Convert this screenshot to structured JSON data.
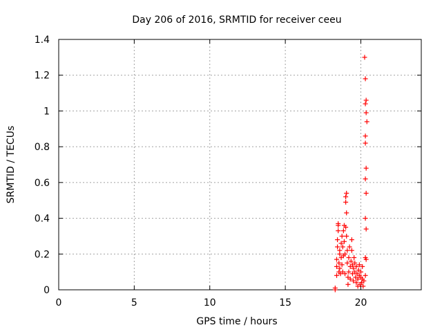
{
  "chart_data": {
    "type": "scatter",
    "title": "Day 206 of 2016, SRMTID for receiver ceeu",
    "xlabel": "GPS time / hours",
    "ylabel": "SRMTID / TECUs",
    "xlim": [
      0,
      24
    ],
    "ylim": [
      0,
      1.4
    ],
    "xticks": [
      "0",
      "5",
      "10",
      "15",
      "20"
    ],
    "yticks": [
      "0",
      "0.2",
      "0.4",
      "0.6",
      "0.8",
      "1",
      "1.2",
      "1.4"
    ],
    "grid": true,
    "marker_color": "#ff0000",
    "series": [
      {
        "marker": "cross",
        "points": [
          [
            18.3,
            0.0
          ],
          [
            18.3,
            0.01
          ],
          [
            18.4,
            0.08
          ],
          [
            18.4,
            0.13
          ],
          [
            18.4,
            0.17
          ],
          [
            18.45,
            0.24
          ],
          [
            18.45,
            0.28
          ],
          [
            18.5,
            0.33
          ],
          [
            18.5,
            0.36
          ],
          [
            18.5,
            0.37
          ],
          [
            18.55,
            0.1
          ],
          [
            18.55,
            0.15
          ],
          [
            18.6,
            0.22
          ],
          [
            18.6,
            0.2
          ],
          [
            18.6,
            0.12
          ],
          [
            18.65,
            0.09
          ],
          [
            18.7,
            0.18
          ],
          [
            18.7,
            0.26
          ],
          [
            18.75,
            0.3
          ],
          [
            18.75,
            0.14
          ],
          [
            18.8,
            0.24
          ],
          [
            18.8,
            0.1
          ],
          [
            18.85,
            0.19
          ],
          [
            18.85,
            0.33
          ],
          [
            18.9,
            0.36
          ],
          [
            18.9,
            0.27
          ],
          [
            18.95,
            0.2
          ],
          [
            18.95,
            0.09
          ],
          [
            19.0,
            0.49
          ],
          [
            19.0,
            0.52
          ],
          [
            19.05,
            0.54
          ],
          [
            19.05,
            0.43
          ],
          [
            19.0,
            0.35
          ],
          [
            19.05,
            0.3
          ],
          [
            19.1,
            0.22
          ],
          [
            19.1,
            0.15
          ],
          [
            19.15,
            0.07
          ],
          [
            19.15,
            0.03
          ],
          [
            19.2,
            0.1
          ],
          [
            19.2,
            0.18
          ],
          [
            19.25,
            0.24
          ],
          [
            19.3,
            0.13
          ],
          [
            19.3,
            0.06
          ],
          [
            19.35,
            0.16
          ],
          [
            19.4,
            0.28
          ],
          [
            19.4,
            0.22
          ],
          [
            19.45,
            0.14
          ],
          [
            19.45,
            0.09
          ],
          [
            19.5,
            0.05
          ],
          [
            19.5,
            0.12
          ],
          [
            19.55,
            0.18
          ],
          [
            19.6,
            0.1
          ],
          [
            19.6,
            0.15
          ],
          [
            19.65,
            0.07
          ],
          [
            19.7,
            0.13
          ],
          [
            19.7,
            0.04
          ],
          [
            19.75,
            0.09
          ],
          [
            19.8,
            0.02
          ],
          [
            19.8,
            0.06
          ],
          [
            19.85,
            0.11
          ],
          [
            19.9,
            0.08
          ],
          [
            19.9,
            0.14
          ],
          [
            19.95,
            0.03
          ],
          [
            20.0,
            0.07
          ],
          [
            20.0,
            0.1
          ],
          [
            20.05,
            0.04
          ],
          [
            20.1,
            0.06
          ],
          [
            20.1,
            0.13
          ],
          [
            20.15,
            0.02
          ],
          [
            20.2,
            0.05
          ],
          [
            20.25,
            1.3
          ],
          [
            20.3,
            1.18
          ],
          [
            20.3,
            1.04
          ],
          [
            20.35,
            1.06
          ],
          [
            20.35,
            0.99
          ],
          [
            20.4,
            0.94
          ],
          [
            20.3,
            0.86
          ],
          [
            20.3,
            0.82
          ],
          [
            20.35,
            0.68
          ],
          [
            20.3,
            0.62
          ],
          [
            20.35,
            0.54
          ],
          [
            20.3,
            0.4
          ],
          [
            20.35,
            0.34
          ],
          [
            20.3,
            0.18
          ],
          [
            20.35,
            0.17
          ],
          [
            20.3,
            0.08
          ]
        ]
      }
    ]
  }
}
